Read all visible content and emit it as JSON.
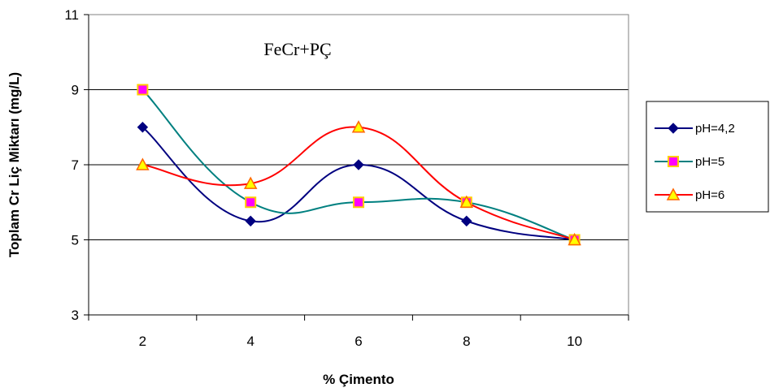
{
  "chart_data": {
    "type": "line",
    "annotation": "FeCr+PÇ",
    "xlabel": "% Çimento",
    "ylabel": "Toplam Cr Liç Miktarı (mg/L)",
    "categories": [
      2,
      4,
      6,
      8,
      10
    ],
    "x_tick_labels": [
      "2",
      "4",
      "6",
      "8",
      "10"
    ],
    "y_tick_labels": [
      "3",
      "5",
      "7",
      "9",
      "11"
    ],
    "y_ticks": [
      3,
      5,
      7,
      9,
      11
    ],
    "ylim": [
      3,
      11
    ],
    "grid": "horizontal",
    "smooth": true,
    "legend_position": "right",
    "series": [
      {
        "name": "pH=4,2",
        "values": [
          8,
          5.5,
          7,
          5.5,
          5
        ],
        "color": "#000080",
        "marker": "diamond",
        "marker_fill": "#000080"
      },
      {
        "name": "pH=5",
        "values": [
          9,
          6,
          6,
          6,
          5
        ],
        "color": "#008080",
        "marker": "square",
        "marker_fill": "#FF00FF",
        "marker_stroke": "#FFCC00"
      },
      {
        "name": "pH=6",
        "values": [
          7,
          6.5,
          8,
          6,
          5
        ],
        "color": "#FF0000",
        "marker": "triangle",
        "marker_fill": "#FFFF00",
        "marker_stroke": "#FF6600"
      }
    ]
  }
}
